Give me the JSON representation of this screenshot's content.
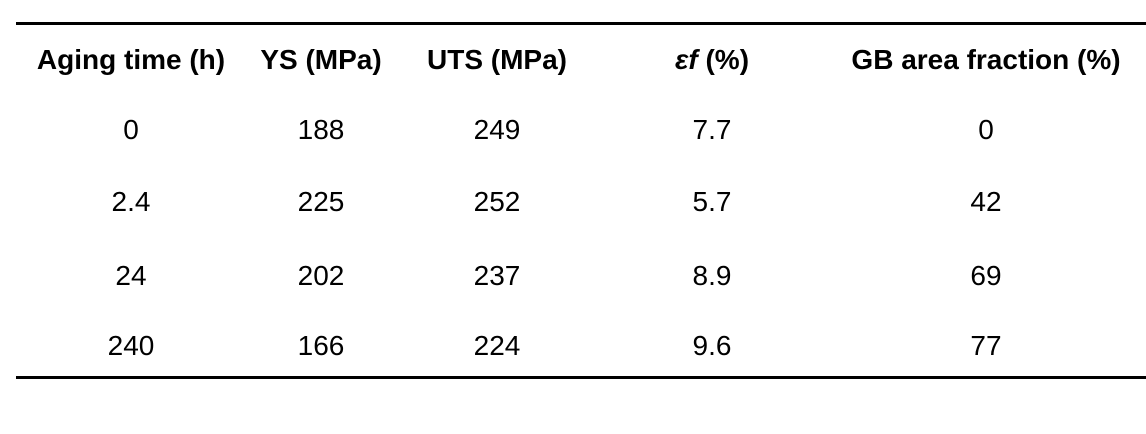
{
  "table": {
    "headers": [
      "Aging time (h)",
      "YS (MPa)",
      "UTS (MPa)",
      "εf (%)",
      "GB area fraction (%)"
    ],
    "rows": [
      [
        "0",
        "188",
        "249",
        "7.7",
        "0"
      ],
      [
        "2.4",
        "225",
        "252",
        "5.7",
        "42"
      ],
      [
        "24",
        "202",
        "237",
        "8.9",
        "69"
      ],
      [
        "240",
        "166",
        "224",
        "9.6",
        "77"
      ]
    ]
  }
}
